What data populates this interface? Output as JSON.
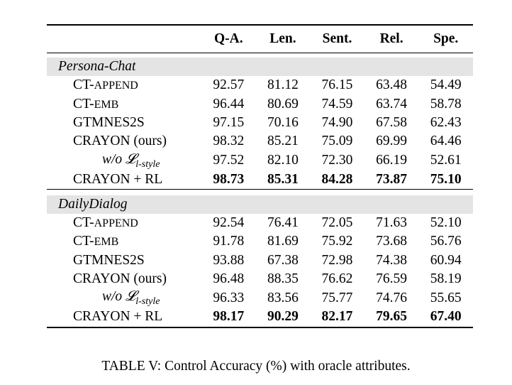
{
  "table": {
    "columns": [
      "Q-A.",
      "Len.",
      "Sent.",
      "Rel.",
      "Spe."
    ],
    "sections": [
      {
        "name": "Persona-Chat",
        "rows": [
          {
            "method": "CT-append",
            "values": [
              "92.57",
              "81.12",
              "76.15",
              "63.48",
              "54.49"
            ]
          },
          {
            "method": "CT-emb",
            "values": [
              "96.44",
              "80.69",
              "74.59",
              "63.74",
              "58.78"
            ]
          },
          {
            "method": "GTMNES2S",
            "values": [
              "97.15",
              "70.16",
              "74.90",
              "67.58",
              "62.43"
            ]
          },
          {
            "method": "CRAYON (ours)",
            "values": [
              "98.32",
              "85.21",
              "75.09",
              "69.99",
              "64.46"
            ]
          },
          {
            "method": "w/o 𝓛l-style",
            "values": [
              "97.52",
              "82.10",
              "72.30",
              "66.19",
              "52.61"
            ]
          },
          {
            "method": "CRAYON + RL",
            "values": [
              "98.73",
              "85.31",
              "84.28",
              "73.87",
              "75.10"
            ]
          }
        ]
      },
      {
        "name": "DailyDialog",
        "rows": [
          {
            "method": "CT-append",
            "values": [
              "92.54",
              "76.41",
              "72.05",
              "71.63",
              "52.10"
            ]
          },
          {
            "method": "CT-emb",
            "values": [
              "91.78",
              "81.69",
              "75.92",
              "73.68",
              "56.76"
            ]
          },
          {
            "method": "GTMNES2S",
            "values": [
              "93.88",
              "67.38",
              "72.98",
              "74.38",
              "60.94"
            ]
          },
          {
            "method": "CRAYON (ours)",
            "values": [
              "96.48",
              "88.35",
              "76.62",
              "76.59",
              "58.19"
            ]
          },
          {
            "method": "w/o 𝓛l-style",
            "values": [
              "96.33",
              "83.56",
              "75.77",
              "74.76",
              "55.65"
            ]
          },
          {
            "method": "CRAYON + RL",
            "values": [
              "98.17",
              "90.29",
              "82.17",
              "79.65",
              "67.40"
            ]
          }
        ]
      }
    ]
  },
  "caption": "TABLE V: Control Accuracy (%) with oracle attributes."
}
